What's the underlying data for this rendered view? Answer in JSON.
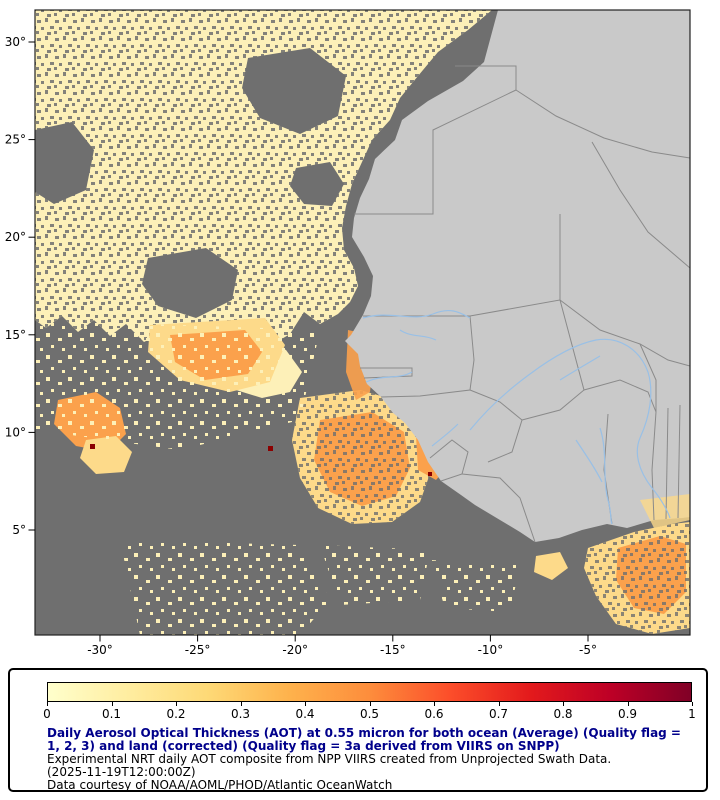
{
  "figure": {
    "axes": {
      "lat_ticks": [
        "30°",
        "25°",
        "20°",
        "15°",
        "10°",
        "5°"
      ],
      "lon_ticks": [
        "-30°",
        "-25°",
        "-20°",
        "-15°",
        "-10°",
        "-5°"
      ]
    },
    "colors": {
      "no_data": "#6f6f6f",
      "land": "#c9c9c9",
      "border": "#8a8a8a",
      "river": "#99c0e6",
      "aot_low": "#fdf0b8",
      "aot_mid": "#fdda8a",
      "aot_high": "#fba14c",
      "aot_extreme": "#8b0000",
      "frame": "#222222"
    }
  },
  "legend": {
    "title": "Daily Aerosol Optical Thickness (AOT) at 0.55 micron for both ocean (Average) (Quality flag = 1, 2, 3) and land (corrected) (Quality flag = 3a derived from VIIRS on SNPP)",
    "line2": "Experimental NRT daily AOT composite from NPP VIIRS created from Unprojected Swath Data.",
    "timestamp": "(2025-11-19T12:00:00Z)",
    "credit": "Data courtesy of NOAA/AOML/PHOD/Atlantic OceanWatch",
    "ticks": [
      "0",
      "0.1",
      "0.2",
      "0.3",
      "0.4",
      "0.5",
      "0.6",
      "0.7",
      "0.8",
      "0.9",
      "1"
    ],
    "colors": [
      "#ffffcc",
      "#ffeda0",
      "#fed976",
      "#feb24c",
      "#fd8d3c",
      "#fc4e2a",
      "#e31a1c",
      "#bd0026",
      "#800026"
    ],
    "title_color": "#00008B",
    "text_color": "#000000"
  },
  "chart_data": {
    "type": "heatmap",
    "title": "Daily Aerosol Optical Thickness (AOT) at 0.55 micron for both ocean (Average) and land (corrected)",
    "date": "2025-11-19T12:00:00Z",
    "sensor": "VIIRS on SNPP (NPP)",
    "source": "NOAA/AOML/PHOD/Atlantic OceanWatch",
    "colorbar": {
      "min": 0,
      "max": 1,
      "tick_values": [
        0,
        0.1,
        0.2,
        0.3,
        0.4,
        0.5,
        0.6,
        0.7,
        0.8,
        0.9,
        1
      ],
      "colors": [
        "#ffffcc",
        "#ffeda0",
        "#fed976",
        "#feb24c",
        "#fd8d3c",
        "#fc4e2a",
        "#e31a1c",
        "#bd0026",
        "#800026"
      ]
    },
    "x_axis": {
      "tick_labels_deg_lon": [
        -30,
        -25,
        -20,
        -15,
        -10,
        -5
      ]
    },
    "y_axis": {
      "tick_labels_deg_lat": [
        30,
        25,
        20,
        15,
        10,
        5
      ]
    },
    "notes": "Gray = no data; pale yellow to orange AOT plume over the eastern tropical Atlantic off West Africa; light gray land with country borders and rivers"
  }
}
